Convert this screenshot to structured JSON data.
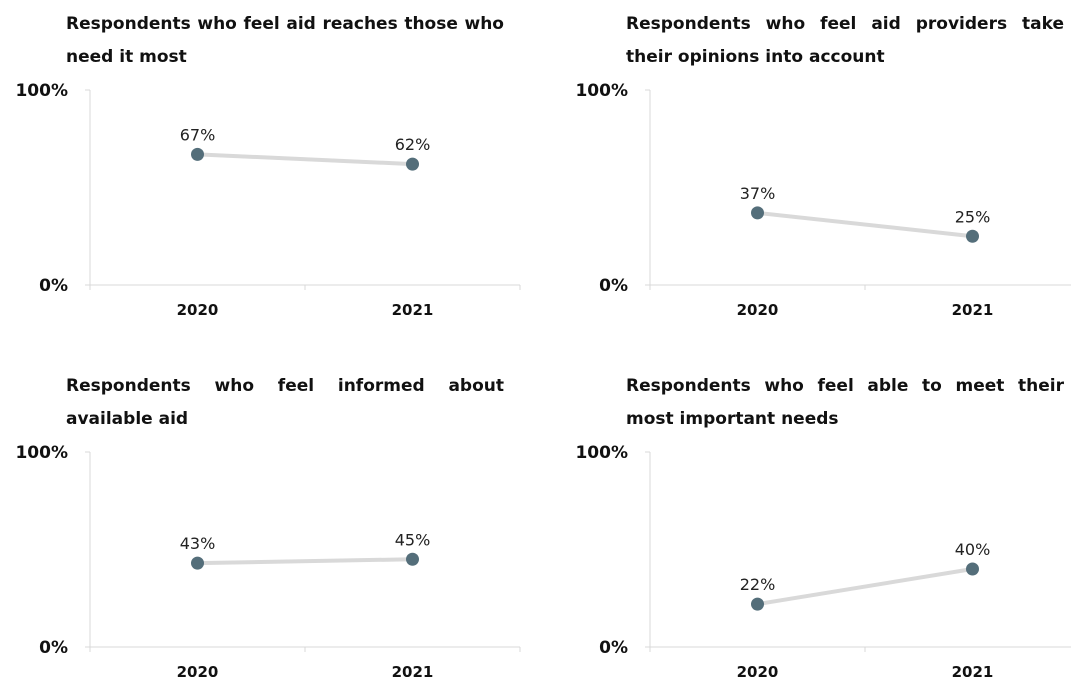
{
  "chart_data": [
    {
      "type": "line",
      "title": "Respondents who feel aid reaches those who need it most",
      "categories": [
        "2020",
        "2021"
      ],
      "values": [
        67,
        62
      ],
      "value_labels": [
        "67%",
        "62%"
      ],
      "yticks": [
        "0%",
        "100%"
      ],
      "ylim": [
        0,
        100
      ],
      "grid": false,
      "colors": {
        "line": "#d9d9d9",
        "marker": "#546e7a"
      }
    },
    {
      "type": "line",
      "title": "Respondents who feel aid providers take their opinions into account",
      "categories": [
        "2020",
        "2021"
      ],
      "values": [
        37,
        25
      ],
      "value_labels": [
        "37%",
        "25%"
      ],
      "yticks": [
        "0%",
        "100%"
      ],
      "ylim": [
        0,
        100
      ],
      "grid": false,
      "colors": {
        "line": "#d9d9d9",
        "marker": "#546e7a"
      }
    },
    {
      "type": "line",
      "title": "Respondents who feel informed about available aid",
      "categories": [
        "2020",
        "2021"
      ],
      "values": [
        43,
        45
      ],
      "value_labels": [
        "43%",
        "45%"
      ],
      "yticks": [
        "0%",
        "100%"
      ],
      "ylim": [
        0,
        100
      ],
      "grid": false,
      "colors": {
        "line": "#d9d9d9",
        "marker": "#546e7a"
      }
    },
    {
      "type": "line",
      "title": "Respondents who feel able to meet their most important needs",
      "categories": [
        "2020",
        "2021"
      ],
      "values": [
        22,
        40
      ],
      "value_labels": [
        "22%",
        "40%"
      ],
      "yticks": [
        "0%",
        "100%"
      ],
      "ylim": [
        0,
        100
      ],
      "grid": false,
      "colors": {
        "line": "#d9d9d9",
        "marker": "#546e7a"
      }
    }
  ]
}
